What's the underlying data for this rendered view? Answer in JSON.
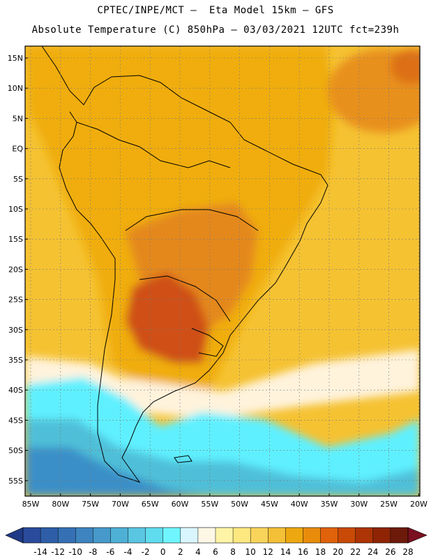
{
  "header": {
    "line1": "CPTEC/INPE/MCT —  Eta Model 15km — GFS",
    "line2": "Absolute Temperature (C) 850hPa — 03/03/2021 12UTC fct=239h"
  },
  "axes": {
    "lat_labels": [
      "15N",
      "10N",
      "5N",
      "EQ",
      "5S",
      "10S",
      "15S",
      "20S",
      "25S",
      "30S",
      "35S",
      "40S",
      "45S",
      "50S",
      "55S"
    ],
    "lon_labels": [
      "85W",
      "80W",
      "75W",
      "70W",
      "65W",
      "60W",
      "55W",
      "50W",
      "45W",
      "40W",
      "35W",
      "30W",
      "25W",
      "20W"
    ]
  },
  "colorbar": {
    "ticks": [
      "-14",
      "-12",
      "-10",
      "-8",
      "-6",
      "-4",
      "-2",
      "0",
      "2",
      "4",
      "6",
      "8",
      "10",
      "12",
      "14",
      "16",
      "18",
      "20",
      "22",
      "24",
      "26",
      "28"
    ],
    "colors": [
      "#2a4b9b",
      "#2f5ea8",
      "#3670b4",
      "#3d84c0",
      "#4699ca",
      "#4fb0d6",
      "#5ac6e2",
      "#5fdcee",
      "#6ff5ff",
      "#d9f6ff",
      "#fff7e6",
      "#fff4a6",
      "#fde880",
      "#f9d45a",
      "#f4c038",
      "#eda80f",
      "#e98c0c",
      "#e0620a",
      "#c94a06",
      "#ad3404",
      "#8e2404",
      "#6e1a0a"
    ],
    "under_color": "#1f3a86",
    "over_color": "#7a1020"
  },
  "colors": {
    "ocean_bg": "#f5c232",
    "land_base": "#f0ad10",
    "warm_core": "#e07a1a",
    "hot_core": "#cf4f12",
    "cool_cream": "#fff3dc",
    "cyan": "#5ff0ff",
    "teal": "#4fbfd8",
    "deep_blue": "#3b8fc8"
  }
}
